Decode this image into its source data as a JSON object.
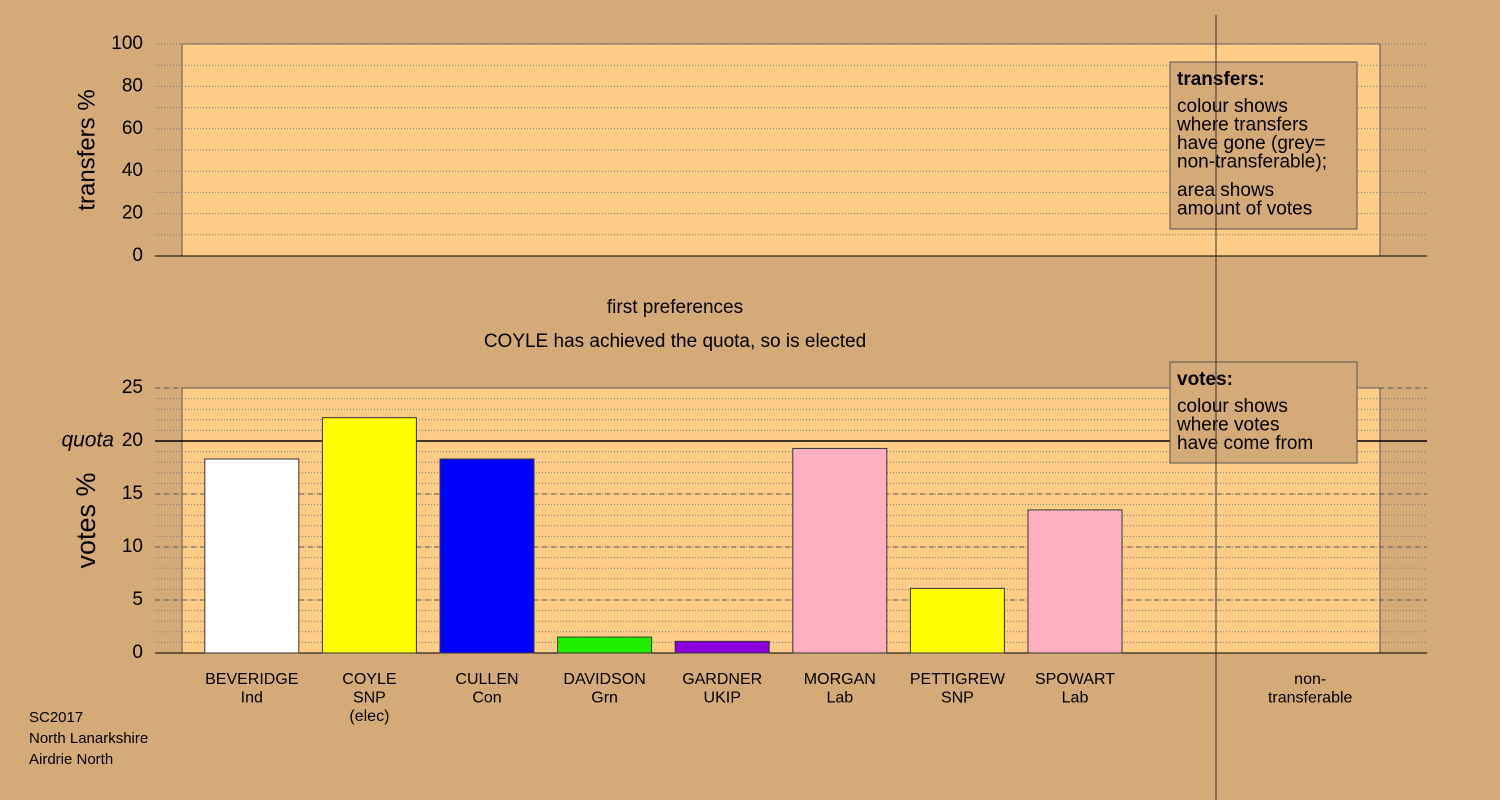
{
  "chart_data": [
    {
      "type": "bar",
      "y_label": "transfers %",
      "ylim": [
        0,
        100
      ],
      "yticks": [
        0,
        20,
        40,
        60,
        80,
        100
      ],
      "minor_grid_step": 10,
      "legend_box": {
        "title": "transfers:",
        "paragraphs": [
          [
            "colour shows",
            "where transfers",
            "have gone (grey=",
            "non-transferable);"
          ],
          [
            "area shows",
            "amount of votes"
          ]
        ]
      }
    },
    {
      "type": "bar",
      "title": "first preferences",
      "subtitle": "COYLE has achieved the quota, so is elected",
      "y_label": "votes %",
      "ylim": [
        0,
        25
      ],
      "yticks": [
        0,
        5,
        10,
        15,
        20,
        25
      ],
      "minor_grid_step": 1,
      "quota": 20,
      "quota_label": "quota",
      "categories": [
        [
          "BEVERIDGE",
          "Ind"
        ],
        [
          "COYLE",
          "SNP",
          "(elec)"
        ],
        [
          "CULLEN",
          "Con"
        ],
        [
          "DAVIDSON",
          "Grn"
        ],
        [
          "GARDNER",
          "UKIP"
        ],
        [
          "MORGAN",
          "Lab"
        ],
        [
          "PETTIGREW",
          "SNP"
        ],
        [
          "SPOWART",
          "Lab"
        ]
      ],
      "values": [
        18.3,
        22.2,
        18.3,
        1.5,
        1.1,
        19.3,
        6.1,
        13.5
      ],
      "colors": [
        "#ffffff",
        "#ffff00",
        "#0000ff",
        "#22ee00",
        "#8800dd",
        "#ffb0c0",
        "#ffff00",
        "#ffb0c0"
      ],
      "extra_category": [
        "non-",
        "transferable"
      ],
      "legend_box": {
        "title": "votes:",
        "paragraphs": [
          [
            "colour shows",
            "where votes",
            "have come from"
          ]
        ]
      }
    }
  ],
  "footer": [
    "SC2017",
    "North Lanarkshire",
    "Airdrie North"
  ]
}
